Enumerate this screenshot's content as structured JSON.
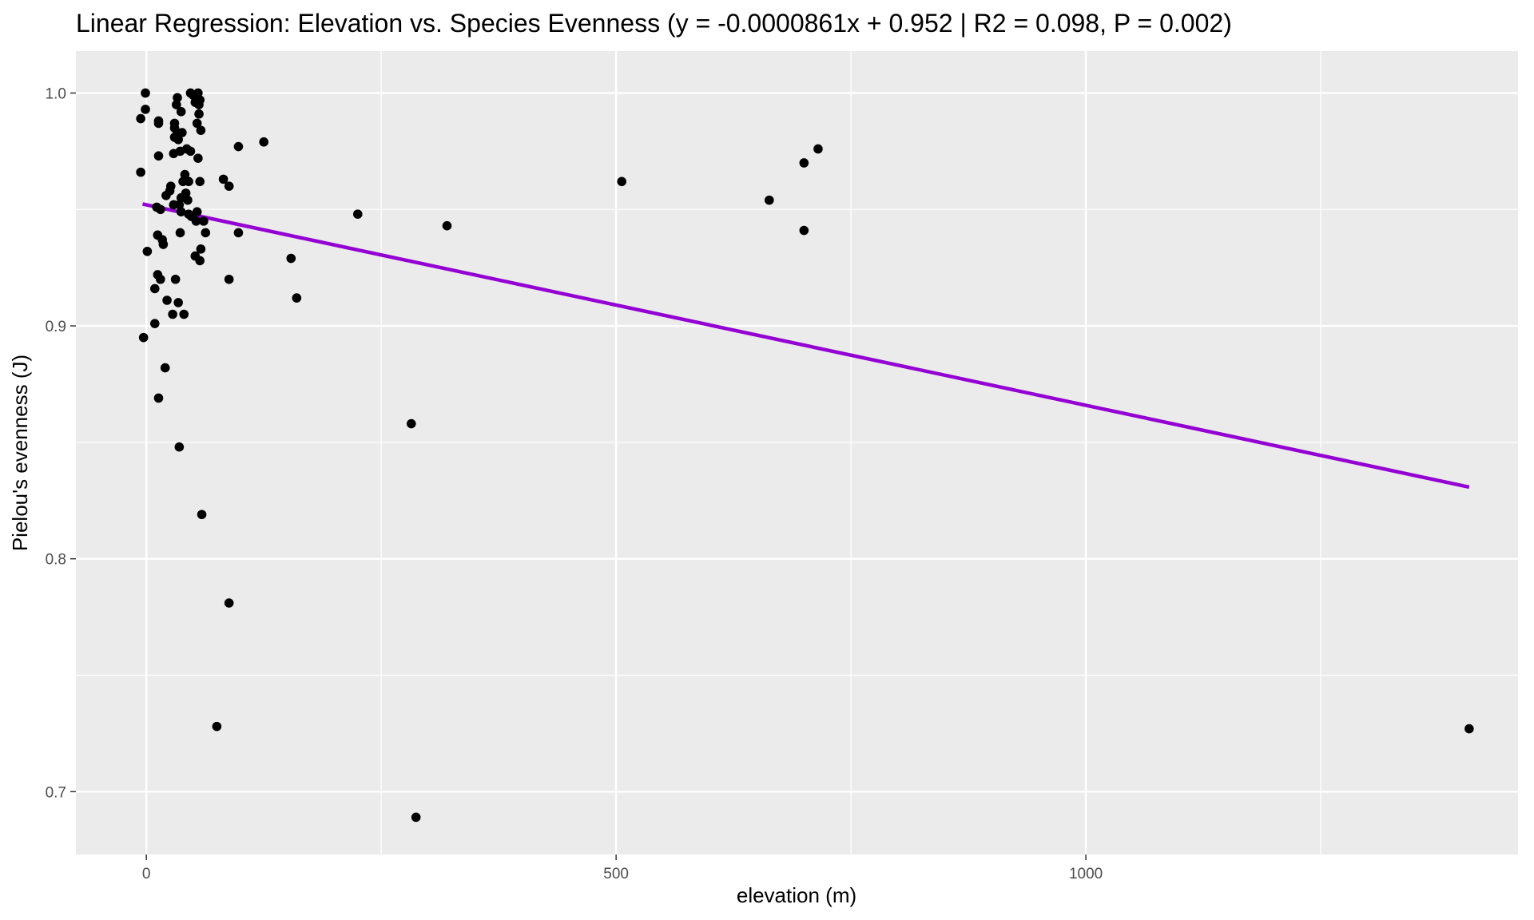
{
  "chart_data": {
    "type": "scatter",
    "title": "Linear Regression: Elevation vs. Species Evenness (y = -0.0000861x + 0.952 | R2 = 0.098, P = 0.002)",
    "xlabel": "elevation (m)",
    "ylabel": "Pielou's evenness (J)",
    "xlim": [
      -75,
      1460
    ],
    "ylim": [
      0.673,
      1.018
    ],
    "x_ticks": [
      0,
      500,
      1000
    ],
    "x_tick_labels": [
      "0",
      "500",
      "1000"
    ],
    "y_ticks": [
      0.7,
      0.8,
      0.9,
      1.0
    ],
    "y_tick_labels": [
      "0.7",
      "0.8",
      "0.9",
      "1.0"
    ],
    "x_minor_ticks": [
      250,
      750,
      1250
    ],
    "y_minor_ticks": [
      0.75,
      0.85,
      0.95
    ],
    "grid": true,
    "legend": "none",
    "colors": {
      "panel": "#ebebeb",
      "grid": "#ffffff",
      "points": "#000000",
      "fit_line": "#9400d3"
    },
    "fit_line": {
      "slope": -8.61e-05,
      "intercept": 0.952,
      "x_range": [
        -4,
        1408
      ]
    },
    "points": [
      [
        -6,
        0.989
      ],
      [
        -1,
        0.993
      ],
      [
        -1,
        1.0
      ],
      [
        -6,
        0.966
      ],
      [
        1,
        0.932
      ],
      [
        -3,
        0.895
      ],
      [
        9,
        0.901
      ],
      [
        9,
        0.916
      ],
      [
        11,
        0.951
      ],
      [
        12,
        0.939
      ],
      [
        12,
        0.922
      ],
      [
        13,
        0.987
      ],
      [
        13,
        0.988
      ],
      [
        13,
        0.973
      ],
      [
        13,
        0.869
      ],
      [
        15,
        0.92
      ],
      [
        15,
        0.95
      ],
      [
        17,
        0.937
      ],
      [
        18,
        0.935
      ],
      [
        20,
        0.882
      ],
      [
        21,
        0.956
      ],
      [
        22,
        0.911
      ],
      [
        25,
        0.958
      ],
      [
        26,
        0.96
      ],
      [
        28,
        0.905
      ],
      [
        29,
        0.952
      ],
      [
        29,
        0.974
      ],
      [
        30,
        0.985
      ],
      [
        30,
        0.981
      ],
      [
        30,
        0.987
      ],
      [
        31,
        0.92
      ],
      [
        32,
        0.995
      ],
      [
        33,
        0.998
      ],
      [
        33,
        0.983
      ],
      [
        34,
        0.91
      ],
      [
        34,
        0.98
      ],
      [
        35,
        0.952
      ],
      [
        35,
        0.848
      ],
      [
        36,
        0.975
      ],
      [
        36,
        0.94
      ],
      [
        37,
        0.992
      ],
      [
        37,
        0.949
      ],
      [
        37,
        0.955
      ],
      [
        38,
        0.983
      ],
      [
        39,
        0.962
      ],
      [
        40,
        0.905
      ],
      [
        41,
        0.965
      ],
      [
        42,
        0.957
      ],
      [
        43,
        0.976
      ],
      [
        44,
        0.954
      ],
      [
        45,
        0.962
      ],
      [
        45,
        0.948
      ],
      [
        47,
        1.0
      ],
      [
        47,
        0.975
      ],
      [
        48,
        0.947
      ],
      [
        50,
        0.999
      ],
      [
        52,
        0.93
      ],
      [
        52,
        0.996
      ],
      [
        53,
        0.945
      ],
      [
        54,
        0.987
      ],
      [
        54,
        0.949
      ],
      [
        55,
        1.0
      ],
      [
        55,
        0.972
      ],
      [
        56,
        0.991
      ],
      [
        56,
        0.995
      ],
      [
        57,
        0.928
      ],
      [
        57,
        0.997
      ],
      [
        57,
        0.962
      ],
      [
        58,
        0.984
      ],
      [
        58,
        0.933
      ],
      [
        59,
        0.819
      ],
      [
        61,
        0.945
      ],
      [
        63,
        0.94
      ],
      [
        75,
        0.728
      ],
      [
        82,
        0.963
      ],
      [
        88,
        0.96
      ],
      [
        88,
        0.92
      ],
      [
        88,
        0.781
      ],
      [
        98,
        0.977
      ],
      [
        98,
        0.94
      ],
      [
        125,
        0.979
      ],
      [
        154,
        0.929
      ],
      [
        160,
        0.912
      ],
      [
        225,
        0.948
      ],
      [
        282,
        0.858
      ],
      [
        287,
        0.689
      ],
      [
        320,
        0.943
      ],
      [
        506,
        0.962
      ],
      [
        663,
        0.954
      ],
      [
        700,
        0.97
      ],
      [
        700,
        0.941
      ],
      [
        715,
        0.976
      ],
      [
        1408,
        0.727
      ]
    ]
  }
}
